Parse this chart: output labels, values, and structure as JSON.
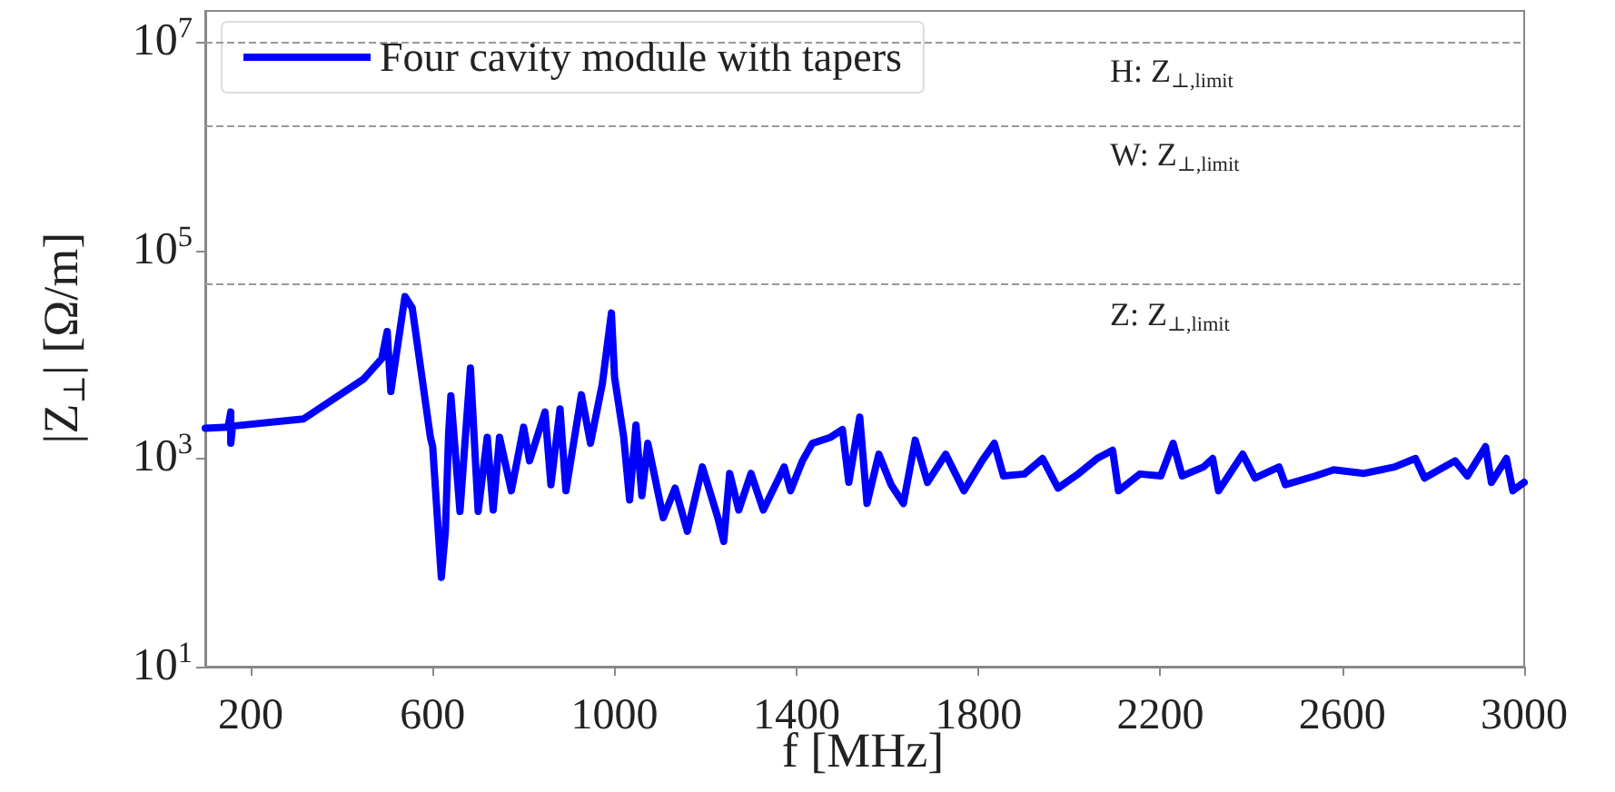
{
  "chart_data": {
    "type": "line",
    "xlabel": "f [MHz]",
    "ylabel": "|Z$_{⊥}$| [Ω/m]",
    "xlim": [
      100,
      3000
    ],
    "xticks": [
      200,
      600,
      1000,
      1400,
      1800,
      2200,
      2600,
      3000
    ],
    "ylim": [
      10,
      20000000
    ],
    "yticks": [
      {
        "value": 10,
        "label": "10$^{1}$"
      },
      {
        "value": 1000,
        "label": "10$^{3}$"
      },
      {
        "value": 100000,
        "label": "10$^{5}$"
      },
      {
        "value": 10000000,
        "label": "10$^{7}$"
      }
    ],
    "log": "y",
    "grid": false,
    "legend": "top left",
    "marker": "none",
    "line_style": "solid",
    "x": [
      100,
      150,
      156,
      156,
      160,
      316,
      448,
      488,
      500,
      508,
      539,
      555,
      595,
      600,
      619,
      628,
      635,
      640,
      660,
      683,
      700,
      720,
      733,
      747,
      773,
      800,
      813,
      847,
      860,
      880,
      893,
      927,
      947,
      973,
      993,
      1000,
      1020,
      1033,
      1047,
      1060,
      1073,
      1107,
      1133,
      1160,
      1193,
      1227,
      1240,
      1253,
      1273,
      1300,
      1327,
      1373,
      1387,
      1413,
      1435,
      1475,
      1501,
      1515,
      1539,
      1555,
      1581,
      1608,
      1635,
      1661,
      1688,
      1728,
      1768,
      1808,
      1835,
      1855,
      1901,
      1941,
      1975,
      2021,
      2061,
      2095,
      2108,
      2155,
      2201,
      2228,
      2248,
      2295,
      2315,
      2328,
      2381,
      2408,
      2461,
      2475,
      2541,
      2581,
      2648,
      2715,
      2761,
      2781,
      2848,
      2875,
      2915,
      2928,
      2961,
      2975,
      3000
    ],
    "series": [
      {
        "name": "Four cavity module with tapers",
        "color": "#0000ff",
        "values": [
          1950,
          2000,
          2800,
          1400,
          2050,
          2400,
          5800,
          9100,
          16600,
          4400,
          36000,
          28000,
          1600,
          1300,
          72,
          200,
          1700,
          4000,
          310,
          7400,
          310,
          1600,
          320,
          1600,
          490,
          2000,
          950,
          2800,
          560,
          3000,
          490,
          4100,
          1400,
          5200,
          25000,
          6000,
          1600,
          400,
          2100,
          440,
          1400,
          270,
          520,
          200,
          830,
          270,
          160,
          720,
          320,
          720,
          320,
          830,
          490,
          950,
          1400,
          1600,
          1900,
          590,
          2500,
          370,
          1100,
          560,
          370,
          1500,
          590,
          1100,
          490,
          950,
          1400,
          680,
          710,
          1000,
          520,
          720,
          1000,
          1200,
          490,
          710,
          680,
          1400,
          680,
          830,
          1000,
          490,
          1100,
          650,
          830,
          560,
          680,
          780,
          720,
          830,
          1000,
          650,
          950,
          680,
          1300,
          590,
          1000,
          490,
          590
        ]
      }
    ],
    "ref_lines": [
      {
        "axis": "y",
        "value": 10000000,
        "label": "H: Z$_{⊥,limit}$",
        "color": "#999999",
        "line_style": "dashed"
      },
      {
        "axis": "y",
        "value": 1600000,
        "label": "W: Z$_{⊥,limit}$",
        "color": "#999999",
        "line_style": "dashed"
      },
      {
        "axis": "y",
        "value": 47000,
        "label": "Z: Z$_{⊥,limit}$",
        "color": "#999999",
        "line_style": "dashed"
      }
    ]
  }
}
